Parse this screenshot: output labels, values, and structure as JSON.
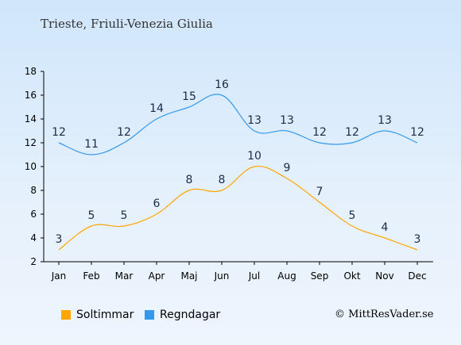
{
  "title": "Trieste, Friuli-Venezia Giulia",
  "copyright": "© MittResVader.se",
  "colors": {
    "sun": "#ffa500",
    "rain": "#3399ee"
  },
  "chart_data": {
    "type": "line",
    "title": "Trieste, Friuli-Venezia Giulia",
    "xlabel": "",
    "ylabel": "",
    "categories": [
      "Jan",
      "Feb",
      "Mar",
      "Apr",
      "Maj",
      "Jun",
      "Jul",
      "Aug",
      "Sep",
      "Okt",
      "Nov",
      "Dec"
    ],
    "ylim": [
      2,
      18
    ],
    "yticks": [
      2,
      4,
      6,
      8,
      10,
      12,
      14,
      16,
      18
    ],
    "grid": false,
    "legend_position": "bottom-left",
    "series": [
      {
        "name": "Soltimmar",
        "color": "#ffa500",
        "values": [
          3,
          5,
          5,
          6,
          8,
          8,
          10,
          9,
          7,
          5,
          4,
          3
        ]
      },
      {
        "name": "Regndagar",
        "color": "#3399ee",
        "values": [
          12,
          11,
          12,
          14,
          15,
          16,
          13,
          13,
          12,
          12,
          13,
          12
        ]
      }
    ]
  }
}
